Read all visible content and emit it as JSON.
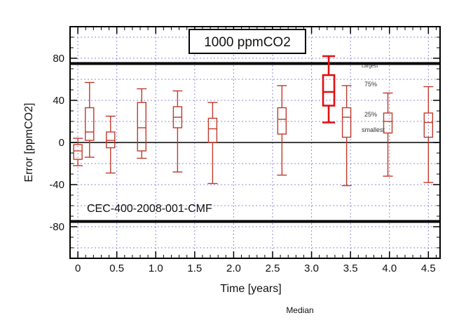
{
  "chart_data": {
    "type": "box",
    "title": "1000 ppmCO2",
    "xlabel": "Time [years]",
    "ylabel": "Error [ppmCO2]",
    "xlim": [
      -0.1,
      4.65
    ],
    "ylim": [
      -110,
      110
    ],
    "xticks": [
      0,
      0.5,
      1.0,
      1.5,
      2.0,
      2.5,
      3.0,
      3.5,
      4.0,
      4.5
    ],
    "xtick_labels": [
      "0",
      "0.5",
      "1.0",
      "1.5",
      "2.0",
      "2.5",
      "3.0",
      "3.5",
      "4.0",
      "4.5"
    ],
    "yticks": [
      -80,
      -40,
      0,
      40,
      80
    ],
    "ytick_labels": [
      "-80",
      "-40",
      "0",
      "40",
      "80"
    ],
    "grid": true,
    "reference_lines": [
      75,
      -75,
      0
    ],
    "annotation": "CEC-400-2008-001-CMF",
    "legend": {
      "position": "top-right",
      "labels": [
        "Largest",
        "75%",
        "25%",
        "smallest"
      ],
      "footer": "Median"
    },
    "boxes": [
      {
        "x": 0.0,
        "min": -22,
        "q1": -16,
        "median": -8,
        "q3": -2,
        "max": 4,
        "highlight": false
      },
      {
        "x": 0.15,
        "min": -14,
        "q1": 2,
        "median": 10,
        "q3": 33,
        "max": 57,
        "highlight": false
      },
      {
        "x": 0.42,
        "min": -29,
        "q1": -5,
        "median": 2,
        "q3": 10,
        "max": 25,
        "highlight": false
      },
      {
        "x": 0.82,
        "min": -15,
        "q1": -8,
        "median": 14,
        "q3": 38,
        "max": 51,
        "highlight": false
      },
      {
        "x": 1.28,
        "min": -28,
        "q1": 14,
        "median": 24,
        "q3": 34,
        "max": 49,
        "highlight": false
      },
      {
        "x": 1.73,
        "min": -39,
        "q1": 0,
        "median": 13,
        "q3": 23,
        "max": 38,
        "highlight": false
      },
      {
        "x": 2.62,
        "min": -31,
        "q1": 8,
        "median": 22,
        "q3": 33,
        "max": 54,
        "highlight": false
      },
      {
        "x": 3.22,
        "min": 19,
        "q1": 35,
        "median": 48,
        "q3": 64,
        "max": 82,
        "highlight": true
      },
      {
        "x": 3.45,
        "min": -41,
        "q1": 5,
        "median": 24,
        "q3": 33,
        "max": 54,
        "highlight": false
      },
      {
        "x": 3.98,
        "min": -32,
        "q1": 9,
        "median": 20,
        "q3": 28,
        "max": 47,
        "highlight": false
      },
      {
        "x": 4.5,
        "min": -38,
        "q1": 5,
        "median": 19,
        "q3": 28,
        "max": 53,
        "highlight": false
      }
    ],
    "colors": {
      "box": "#c0392b",
      "highlight": "#e01010",
      "grid": "#8c8cd9",
      "reference": "#000000",
      "axis": "#000000"
    }
  }
}
